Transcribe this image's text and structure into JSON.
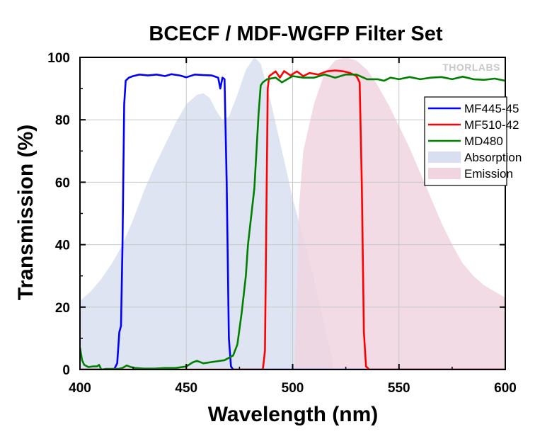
{
  "chart_data": {
    "type": "line",
    "title": "BCECF / MDF-WGFP Filter Set",
    "xlabel": "Wavelength (nm)",
    "ylabel": "Transmission (%)",
    "xlim": [
      400,
      600
    ],
    "ylim": [
      0,
      100
    ],
    "xticks": [
      400,
      450,
      500,
      550,
      600
    ],
    "yticks": [
      0,
      20,
      40,
      60,
      80,
      100
    ],
    "x_tick_labels": [
      "400",
      "450",
      "500",
      "550",
      "600"
    ],
    "y_tick_labels": [
      "0",
      "20",
      "40",
      "60",
      "80",
      "100"
    ],
    "grid": true,
    "legend_position": "top-right",
    "watermark": "THORLABS",
    "series": [
      {
        "name": "MF445-45",
        "kind": "line",
        "color": "#0000ff",
        "points": [
          [
            400,
            0
          ],
          [
            410,
            0
          ],
          [
            416,
            0
          ],
          [
            417.5,
            2
          ],
          [
            418.5,
            12
          ],
          [
            419.3,
            14
          ],
          [
            420,
            40
          ],
          [
            420.8,
            85
          ],
          [
            421.5,
            92.5
          ],
          [
            423,
            93.5
          ],
          [
            425,
            94
          ],
          [
            428,
            94.5
          ],
          [
            432,
            94.2
          ],
          [
            436,
            94.5
          ],
          [
            440,
            94
          ],
          [
            443,
            94.6
          ],
          [
            447,
            94.2
          ],
          [
            450,
            93.6
          ],
          [
            454,
            94.5
          ],
          [
            458,
            94.3
          ],
          [
            462,
            94.2
          ],
          [
            465,
            93.5
          ],
          [
            466,
            90
          ],
          [
            467,
            93.5
          ],
          [
            468,
            93
          ],
          [
            469,
            60
          ],
          [
            470,
            10
          ],
          [
            471,
            1
          ],
          [
            472,
            0
          ],
          [
            480,
            0
          ],
          [
            600,
            0
          ]
        ]
      },
      {
        "name": "MF510-42",
        "kind": "line",
        "color": "#ff0000",
        "points": [
          [
            400,
            0
          ],
          [
            486,
            0
          ],
          [
            487,
            6
          ],
          [
            487.6,
            45
          ],
          [
            488.3,
            90
          ],
          [
            489,
            94
          ],
          [
            492,
            95.5
          ],
          [
            494,
            93.5
          ],
          [
            496,
            95.6
          ],
          [
            499,
            94.2
          ],
          [
            502,
            95.5
          ],
          [
            505,
            94
          ],
          [
            508,
            95
          ],
          [
            512,
            94.5
          ],
          [
            516,
            95.5
          ],
          [
            520,
            95.8
          ],
          [
            524,
            95.5
          ],
          [
            527,
            95
          ],
          [
            530,
            94
          ],
          [
            531.5,
            92
          ],
          [
            532.5,
            60
          ],
          [
            533.5,
            12
          ],
          [
            534.5,
            1
          ],
          [
            536,
            0
          ],
          [
            600,
            0
          ]
        ]
      },
      {
        "name": "MD480",
        "kind": "line",
        "color": "#008000",
        "points": [
          [
            400,
            7
          ],
          [
            401,
            3
          ],
          [
            402,
            1.5
          ],
          [
            404,
            0.8
          ],
          [
            406,
            1
          ],
          [
            408,
            1
          ],
          [
            409,
            1.5
          ],
          [
            410,
            0
          ],
          [
            412,
            0.2
          ],
          [
            415,
            0.2
          ],
          [
            418,
            0.2
          ],
          [
            420,
            0.5
          ],
          [
            422,
            1.3
          ],
          [
            424,
            0.8
          ],
          [
            426,
            0.5
          ],
          [
            430,
            0.3
          ],
          [
            435,
            0.3
          ],
          [
            440,
            0.5
          ],
          [
            445,
            0.5
          ],
          [
            450,
            1
          ],
          [
            453,
            2.3
          ],
          [
            455,
            2.8
          ],
          [
            458,
            2
          ],
          [
            460,
            2.2
          ],
          [
            464,
            2.6
          ],
          [
            468,
            3
          ],
          [
            472,
            4.5
          ],
          [
            474,
            8
          ],
          [
            476,
            18
          ],
          [
            478,
            30
          ],
          [
            479,
            40
          ],
          [
            480,
            46
          ],
          [
            481,
            52
          ],
          [
            482,
            58
          ],
          [
            483,
            70
          ],
          [
            484,
            82
          ],
          [
            485,
            91
          ],
          [
            486,
            92
          ],
          [
            488,
            93
          ],
          [
            492,
            93.5
          ],
          [
            495,
            92
          ],
          [
            500,
            94
          ],
          [
            505,
            93.5
          ],
          [
            510,
            93.5
          ],
          [
            515,
            94.5
          ],
          [
            520,
            93.5
          ],
          [
            525,
            94.5
          ],
          [
            530,
            94.5
          ],
          [
            535,
            93
          ],
          [
            540,
            93
          ],
          [
            543,
            92.5
          ],
          [
            546,
            93.5
          ],
          [
            550,
            93
          ],
          [
            555,
            93.7
          ],
          [
            560,
            93
          ],
          [
            565,
            93.5
          ],
          [
            570,
            93.7
          ],
          [
            575,
            93
          ],
          [
            580,
            93.8
          ],
          [
            585,
            93
          ],
          [
            590,
            92.8
          ],
          [
            595,
            93.2
          ],
          [
            600,
            92.5
          ]
        ]
      },
      {
        "name": "Absorption",
        "kind": "area",
        "color": "#d9dff0",
        "points": [
          [
            400,
            22
          ],
          [
            405,
            25
          ],
          [
            410,
            29
          ],
          [
            415,
            34
          ],
          [
            420,
            40
          ],
          [
            425,
            48
          ],
          [
            430,
            57
          ],
          [
            435,
            65
          ],
          [
            440,
            72
          ],
          [
            445,
            79
          ],
          [
            450,
            85
          ],
          [
            455,
            88
          ],
          [
            458,
            88.5
          ],
          [
            461,
            87
          ],
          [
            464,
            83
          ],
          [
            467,
            80
          ],
          [
            470,
            81
          ],
          [
            474,
            88
          ],
          [
            478,
            96
          ],
          [
            482,
            100
          ],
          [
            485,
            98
          ],
          [
            490,
            85
          ],
          [
            495,
            70
          ],
          [
            500,
            55
          ],
          [
            505,
            42
          ],
          [
            510,
            29
          ],
          [
            515,
            14
          ],
          [
            518,
            5
          ],
          [
            519,
            3
          ]
        ]
      },
      {
        "name": "Emission",
        "kind": "area",
        "color": "#f0d5e0",
        "points": [
          [
            501,
            3
          ],
          [
            502,
            25
          ],
          [
            503,
            52
          ],
          [
            505,
            70
          ],
          [
            510,
            85
          ],
          [
            515,
            95
          ],
          [
            520,
            99
          ],
          [
            525,
            100
          ],
          [
            530,
            99
          ],
          [
            535,
            96
          ],
          [
            540,
            91
          ],
          [
            545,
            85
          ],
          [
            550,
            78
          ],
          [
            555,
            71
          ],
          [
            560,
            63
          ],
          [
            565,
            55
          ],
          [
            570,
            47
          ],
          [
            575,
            40
          ],
          [
            580,
            34
          ],
          [
            585,
            30
          ],
          [
            590,
            27
          ],
          [
            595,
            25
          ],
          [
            600,
            23
          ]
        ]
      }
    ]
  }
}
